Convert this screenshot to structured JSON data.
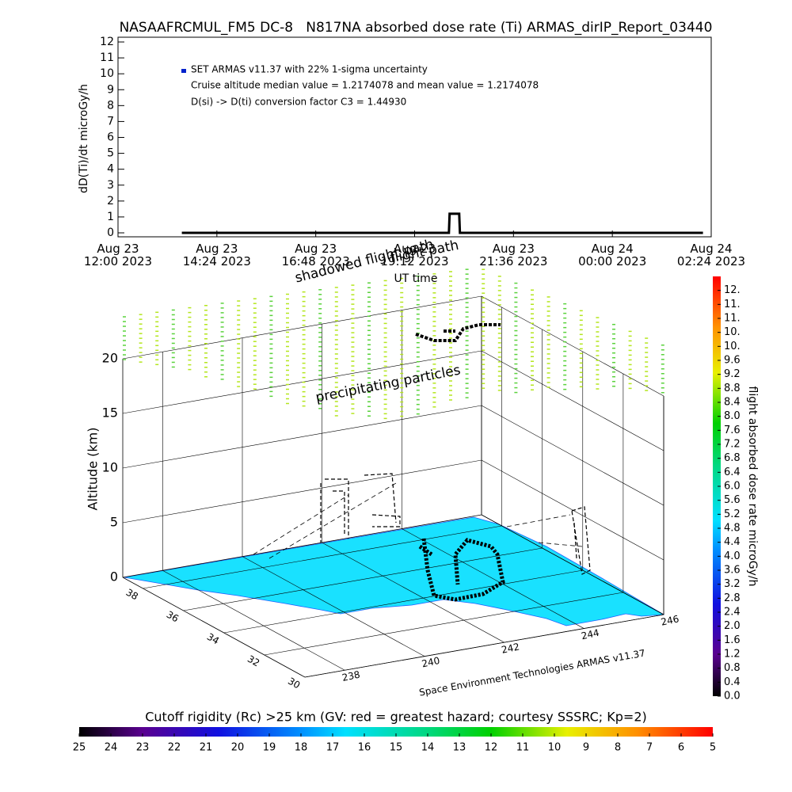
{
  "chart_data": [
    {
      "type": "line",
      "title": "NASAAFRCMUL_FM5 DC-8   N817NA absorbed dose rate (Ti) ARMAS_dirIP_Report_03440",
      "ylabel": "dD(Ti)/dt microGy/h",
      "xlabel": "UT time",
      "annotations": [
        "Cruise altitude median value = 1.2174078 and mean value = 1.2174078",
        "D(si) -> D(ti) conversion factor C3 = 1.44930"
      ],
      "xlim": [
        "2023-08-23 12:00",
        "2023-08-24 02:24"
      ],
      "xticks": [
        {
          "value": "2023-08-23 12:00",
          "label": "Aug 23\n12:00 2023"
        },
        {
          "value": "2023-08-23 14:24",
          "label": "Aug 23\n14:24 2023"
        },
        {
          "value": "2023-08-23 16:48",
          "label": "Aug 23\n16:48 2023"
        },
        {
          "value": "2023-08-23 19:12",
          "label": "Aug 23\n19:12 2023"
        },
        {
          "value": "2023-08-23 21:36",
          "label": "Aug 23\n21:36 2023"
        },
        {
          "value": "2023-08-24 00:00",
          "label": "Aug 24\n00:00 2023"
        },
        {
          "value": "2023-08-24 02:24",
          "label": "Aug 24\n02:24 2023"
        }
      ],
      "ylim": [
        0,
        12
      ],
      "yticks": [
        0,
        1,
        2,
        3,
        4,
        5,
        6,
        7,
        8,
        9,
        10,
        11,
        12
      ],
      "x": [
        "2023-08-23 13:33",
        "2023-08-23 20:02",
        "2023-08-23 20:03",
        "2023-08-23 20:17",
        "2023-08-23 20:18",
        "2023-08-24 02:12"
      ],
      "series": [
        {
          "name": "SET ARMAS v11.37 with 22% 1-sigma uncertainty",
          "color": "#0022cc",
          "line_color": "#000000",
          "values": [
            0,
            0,
            1.2,
            1.2,
            0,
            0
          ]
        }
      ]
    },
    {
      "type": "scatter3d",
      "zlabel": "Altitude (km)",
      "annotations": [
        "precipitating particles",
        "flight path",
        "shadowed flight path"
      ],
      "credit": "Space Environment Technologies ARMAS v11.37",
      "xlim": [
        237,
        246
      ],
      "xticks": [
        238,
        240,
        242,
        244,
        246
      ],
      "ylim": [
        30,
        39
      ],
      "yticks": [
        30,
        32,
        34,
        36,
        38
      ],
      "zlim": [
        0,
        20
      ],
      "zticks": [
        0,
        5,
        10,
        15,
        20
      ],
      "grid": true,
      "ground_color": "#19e1ff"
    },
    {
      "type": "colorbar",
      "orientation": "vertical",
      "title": "flight absorbed dose rate microGy/h",
      "clim": [
        0,
        12
      ],
      "ticks": [
        {
          "value": 0,
          "label": "0.0"
        },
        0.4,
        0.8,
        1.2,
        1.6,
        {
          "value": 2,
          "label": "2.0"
        },
        2.4,
        2.8,
        3.2,
        3.6,
        {
          "value": 4,
          "label": "4.0"
        },
        4.4,
        4.8,
        5.2,
        5.6,
        {
          "value": 6,
          "label": "6.0"
        },
        6.4,
        6.8,
        7.2,
        7.6,
        {
          "value": 8,
          "label": "8.0"
        },
        8.4,
        8.8,
        9.2,
        9.6,
        {
          "value": 10,
          "label": "10."
        },
        {
          "value": 10.4,
          "label": "10."
        },
        {
          "value": 10.8,
          "label": "11."
        },
        {
          "value": 11.2,
          "label": "11."
        },
        {
          "value": 11.6,
          "label": "12."
        }
      ]
    },
    {
      "type": "colorbar",
      "orientation": "horizontal",
      "title": "Cutoff rigidity (Rc) >25 km (GV: red = greatest hazard; courtesy SSSRC; Kp=2)",
      "clim": [
        25,
        5
      ],
      "ticks": [
        25,
        24,
        23,
        22,
        21,
        20,
        19,
        18,
        17,
        16,
        15,
        14,
        13,
        12,
        11,
        10,
        9,
        8,
        7,
        6,
        5
      ]
    }
  ]
}
